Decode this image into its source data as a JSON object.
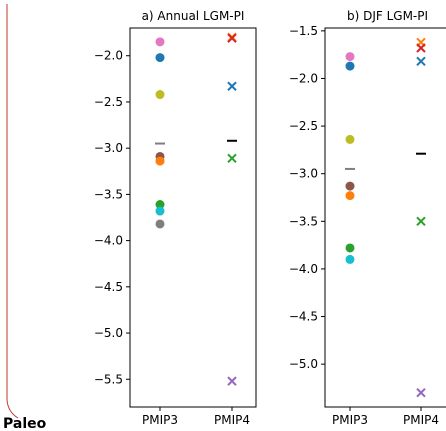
{
  "fragment_text": "Paleo",
  "chart_data": [
    {
      "type": "scatter",
      "title": "a) Annual LGM-PI",
      "categories": [
        "PMIP3",
        "PMIP4"
      ],
      "ylim": [
        -5.8,
        -1.7
      ],
      "yticks": [
        -2.0,
        -2.5,
        -3.0,
        -3.5,
        -4.0,
        -4.5,
        -5.0,
        -5.5
      ],
      "ytick_labels": [
        "−2.0",
        "−2.5",
        "−3.0",
        "−3.5",
        "−4.0",
        "−4.5",
        "−5.0",
        "−5.5"
      ],
      "grid": false,
      "legend": "none",
      "points": [
        {
          "x": "PMIP3",
          "y": -1.85,
          "marker": "circle",
          "color": "#e377c2"
        },
        {
          "x": "PMIP3",
          "y": -2.02,
          "marker": "circle",
          "color": "#1f77b4"
        },
        {
          "x": "PMIP3",
          "y": -2.42,
          "marker": "circle",
          "color": "#bcbd22"
        },
        {
          "x": "PMIP3",
          "y": -3.09,
          "marker": "circle",
          "color": "#8c564b"
        },
        {
          "x": "PMIP3",
          "y": -3.14,
          "marker": "circle",
          "color": "#ff7f0e"
        },
        {
          "x": "PMIP3",
          "y": -3.61,
          "marker": "circle",
          "color": "#2ca02c"
        },
        {
          "x": "PMIP3",
          "y": -3.68,
          "marker": "circle",
          "color": "#17becf"
        },
        {
          "x": "PMIP3",
          "y": -3.82,
          "marker": "circle",
          "color": "#7f7f7f"
        },
        {
          "x": "PMIP3",
          "y": -2.95,
          "marker": "dash",
          "color": "#7f7f7f"
        },
        {
          "x": "PMIP4",
          "y": -1.8,
          "marker": "x",
          "color": "#ff7f0e"
        },
        {
          "x": "PMIP4",
          "y": -1.81,
          "marker": "x",
          "color": "#d62728"
        },
        {
          "x": "PMIP4",
          "y": -2.33,
          "marker": "x",
          "color": "#1f77b4"
        },
        {
          "x": "PMIP4",
          "y": -2.92,
          "marker": "dash",
          "color": "#000000"
        },
        {
          "x": "PMIP4",
          "y": -3.11,
          "marker": "x",
          "color": "#2ca02c"
        },
        {
          "x": "PMIP4",
          "y": -5.52,
          "marker": "x",
          "color": "#9467bd"
        }
      ]
    },
    {
      "type": "scatter",
      "title": "b) DJF LGM-PI",
      "categories": [
        "PMIP3",
        "PMIP4"
      ],
      "ylim": [
        -5.45,
        -1.47
      ],
      "yticks": [
        -1.5,
        -2.0,
        -2.5,
        -3.0,
        -3.5,
        -4.0,
        -4.5,
        -5.0
      ],
      "ytick_labels": [
        "−1.5",
        "−2.0",
        "−2.5",
        "−3.0",
        "−3.5",
        "−4.0",
        "−4.5",
        "−5.0"
      ],
      "grid": false,
      "legend": "none",
      "points": [
        {
          "x": "PMIP3",
          "y": -1.77,
          "marker": "circle",
          "color": "#e377c2"
        },
        {
          "x": "PMIP3",
          "y": -1.87,
          "marker": "circle",
          "color": "#1f77b4"
        },
        {
          "x": "PMIP3",
          "y": -2.64,
          "marker": "circle",
          "color": "#bcbd22"
        },
        {
          "x": "PMIP3",
          "y": -2.95,
          "marker": "dash",
          "color": "#7f7f7f"
        },
        {
          "x": "PMIP3",
          "y": -3.13,
          "marker": "circle",
          "color": "#8c564b"
        },
        {
          "x": "PMIP3",
          "y": -3.23,
          "marker": "circle",
          "color": "#ff7f0e"
        },
        {
          "x": "PMIP3",
          "y": -3.78,
          "marker": "circle",
          "color": "#2ca02c"
        },
        {
          "x": "PMIP3",
          "y": -3.9,
          "marker": "circle",
          "color": "#17becf"
        },
        {
          "x": "PMIP4",
          "y": -1.62,
          "marker": "x",
          "color": "#ff7f0e"
        },
        {
          "x": "PMIP4",
          "y": -1.68,
          "marker": "x",
          "color": "#d62728"
        },
        {
          "x": "PMIP4",
          "y": -1.82,
          "marker": "x",
          "color": "#1f77b4"
        },
        {
          "x": "PMIP4",
          "y": -2.79,
          "marker": "dash",
          "color": "#000000"
        },
        {
          "x": "PMIP4",
          "y": -3.5,
          "marker": "x",
          "color": "#2ca02c"
        },
        {
          "x": "PMIP4",
          "y": -5.3,
          "marker": "x",
          "color": "#9467bd"
        }
      ]
    }
  ]
}
